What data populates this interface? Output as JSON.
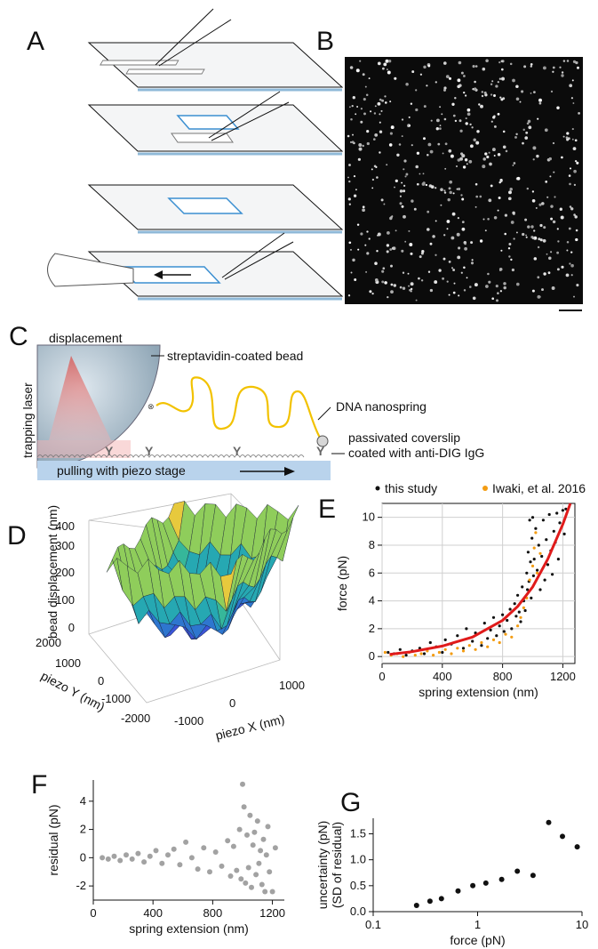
{
  "panels": {
    "a": {
      "label": "A"
    },
    "b": {
      "label": "B"
    },
    "c": {
      "label": "C",
      "annotations": {
        "displacement": "displacement",
        "bead": "streptavidin-coated bead",
        "laser": "trapping laser",
        "dna": "DNA nanospring",
        "coverslip_line1": "passivated coverslip",
        "coverslip_line2": "coated with anti-DIG IgG",
        "stage": "pulling with piezo stage"
      }
    },
    "d": {
      "label": "D",
      "zlabel": "bead displacement (nm)",
      "ylabel": "piezo Y (nm)",
      "xlabel": "piezo X (nm)",
      "zticks": [
        "0",
        "100",
        "200",
        "300",
        "400"
      ],
      "yticks": [
        "-2000",
        "-1000",
        "0",
        "1000",
        "2000"
      ],
      "xticks": [
        "-1000",
        "0",
        "1000"
      ]
    },
    "e": {
      "label": "E"
    },
    "f": {
      "label": "F"
    },
    "g": {
      "label": "G"
    }
  },
  "chart_data": [
    {
      "panel": "E",
      "type": "scatter",
      "xlabel": "spring extension (nm)",
      "ylabel": "force (pN)",
      "xlim": [
        0,
        1280
      ],
      "ylim": [
        -0.5,
        11
      ],
      "xticks": [
        0,
        400,
        800,
        1200
      ],
      "yticks": [
        0,
        2,
        4,
        6,
        8,
        10
      ],
      "grid": true,
      "legend_position": "top",
      "series": [
        {
          "name": "this study",
          "color": "#111111",
          "points": [
            [
              40,
              0.3
            ],
            [
              80,
              0.2
            ],
            [
              120,
              0.5
            ],
            [
              160,
              0.1
            ],
            [
              200,
              0.4
            ],
            [
              250,
              0.6
            ],
            [
              280,
              0.2
            ],
            [
              320,
              1.0
            ],
            [
              360,
              0.7
            ],
            [
              400,
              0.3
            ],
            [
              420,
              1.2
            ],
            [
              460,
              0.9
            ],
            [
              500,
              1.5
            ],
            [
              540,
              0.6
            ],
            [
              560,
              2.0
            ],
            [
              600,
              1.1
            ],
            [
              620,
              1.7
            ],
            [
              660,
              0.8
            ],
            [
              680,
              2.4
            ],
            [
              700,
              1.3
            ],
            [
              720,
              1.9
            ],
            [
              740,
              2.8
            ],
            [
              760,
              1.5
            ],
            [
              780,
              2.2
            ],
            [
              800,
              3.0
            ],
            [
              810,
              1.8
            ],
            [
              830,
              2.6
            ],
            [
              850,
              3.4
            ],
            [
              860,
              2.0
            ],
            [
              880,
              3.8
            ],
            [
              890,
              2.9
            ],
            [
              900,
              4.4
            ],
            [
              910,
              3.2
            ],
            [
              920,
              2.5
            ],
            [
              930,
              5.0
            ],
            [
              940,
              4.0
            ],
            [
              950,
              3.3
            ],
            [
              960,
              6.0
            ],
            [
              965,
              4.8
            ],
            [
              970,
              7.5
            ],
            [
              975,
              5.4
            ],
            [
              980,
              9.8
            ],
            [
              985,
              6.8
            ],
            [
              990,
              4.2
            ],
            [
              995,
              8.5
            ],
            [
              1000,
              10.0
            ],
            [
              1005,
              5.8
            ],
            [
              1010,
              7.0
            ],
            [
              1020,
              9.2
            ],
            [
              1030,
              6.2
            ],
            [
              1040,
              8.0
            ],
            [
              1050,
              4.8
            ],
            [
              1060,
              7.2
            ],
            [
              1070,
              9.8
            ],
            [
              1080,
              5.5
            ],
            [
              1090,
              8.4
            ],
            [
              1100,
              6.6
            ],
            [
              1110,
              10.2
            ],
            [
              1120,
              7.6
            ],
            [
              1130,
              5.9
            ],
            [
              1140,
              9.0
            ],
            [
              1150,
              8.2
            ],
            [
              1160,
              10.3
            ],
            [
              1170,
              7.0
            ],
            [
              1180,
              9.6
            ],
            [
              1200,
              10.5
            ],
            [
              1210,
              8.8
            ],
            [
              1220,
              10.6
            ]
          ]
        },
        {
          "name": "Iwaki, et al. 2016",
          "color": "#f39c12",
          "points": [
            [
              20,
              0.3
            ],
            [
              60,
              0.1
            ],
            [
              100,
              0.2
            ],
            [
              140,
              0.0
            ],
            [
              180,
              0.3
            ],
            [
              220,
              0.1
            ],
            [
              260,
              0.2
            ],
            [
              300,
              0.4
            ],
            [
              340,
              0.1
            ],
            [
              380,
              0.3
            ],
            [
              420,
              0.5
            ],
            [
              460,
              0.2
            ],
            [
              500,
              0.6
            ],
            [
              540,
              0.4
            ],
            [
              580,
              0.8
            ],
            [
              620,
              0.5
            ],
            [
              660,
              1.0
            ],
            [
              700,
              0.7
            ],
            [
              740,
              1.2
            ],
            [
              780,
              1.0
            ],
            [
              820,
              1.6
            ],
            [
              860,
              1.4
            ],
            [
              900,
              2.2
            ],
            [
              920,
              2.8
            ],
            [
              940,
              3.5
            ],
            [
              960,
              4.2
            ],
            [
              980,
              5.5
            ],
            [
              1000,
              6.5
            ],
            [
              1010,
              7.8
            ],
            [
              1020,
              8.9
            ],
            [
              1030,
              6.0
            ],
            [
              1050,
              7.4
            ]
          ]
        },
        {
          "name": "fit",
          "color": "#e01b1b",
          "kind": "line",
          "points": [
            [
              50,
              0.15
            ],
            [
              200,
              0.35
            ],
            [
              400,
              0.75
            ],
            [
              600,
              1.4
            ],
            [
              800,
              2.6
            ],
            [
              900,
              3.6
            ],
            [
              1000,
              5.0
            ],
            [
              1100,
              7.0
            ],
            [
              1200,
              9.5
            ],
            [
              1250,
              11.0
            ]
          ]
        }
      ]
    },
    {
      "panel": "F",
      "type": "scatter",
      "xlabel": "spring extension (nm)",
      "ylabel": "residual (pN)",
      "xlim": [
        0,
        1280
      ],
      "ylim": [
        -3,
        5.5
      ],
      "xticks": [
        0,
        400,
        800,
        1200
      ],
      "yticks": [
        -2,
        0,
        2,
        4
      ],
      "series": [
        {
          "color": "#555555",
          "points": [
            [
              60,
              0.0
            ],
            [
              100,
              -0.1
            ],
            [
              140,
              0.1
            ],
            [
              180,
              -0.2
            ],
            [
              220,
              0.2
            ],
            [
              260,
              -0.1
            ],
            [
              300,
              0.3
            ],
            [
              340,
              -0.3
            ],
            [
              380,
              0.1
            ],
            [
              420,
              0.5
            ],
            [
              460,
              -0.4
            ],
            [
              500,
              0.2
            ],
            [
              540,
              0.6
            ],
            [
              580,
              -0.5
            ],
            [
              620,
              1.1
            ],
            [
              660,
              0.0
            ],
            [
              700,
              -0.8
            ],
            [
              740,
              0.7
            ],
            [
              780,
              -1.0
            ],
            [
              820,
              0.4
            ],
            [
              860,
              -0.6
            ],
            [
              900,
              1.2
            ],
            [
              920,
              -1.3
            ],
            [
              940,
              0.8
            ],
            [
              960,
              -0.9
            ],
            [
              980,
              2.0
            ],
            [
              990,
              -1.5
            ],
            [
              1000,
              5.2
            ],
            [
              1010,
              3.6
            ],
            [
              1020,
              -1.8
            ],
            [
              1030,
              1.6
            ],
            [
              1040,
              -0.7
            ],
            [
              1050,
              3.0
            ],
            [
              1060,
              -2.1
            ],
            [
              1070,
              0.9
            ],
            [
              1080,
              1.8
            ],
            [
              1090,
              -1.2
            ],
            [
              1100,
              2.6
            ],
            [
              1110,
              -0.4
            ],
            [
              1120,
              0.5
            ],
            [
              1130,
              -1.9
            ],
            [
              1140,
              1.3
            ],
            [
              1150,
              -2.4
            ],
            [
              1160,
              0.2
            ],
            [
              1170,
              2.2
            ],
            [
              1180,
              -1.0
            ],
            [
              1200,
              -2.4
            ],
            [
              1220,
              0.7
            ]
          ]
        }
      ]
    },
    {
      "panel": "G",
      "type": "scatter",
      "xlabel": "force (pN)",
      "ylabel_line1": "uncertainty (pN)",
      "ylabel_line2": "(SD of residual)",
      "xscale": "log",
      "xlim": [
        0.1,
        10
      ],
      "ylim": [
        0,
        1.8
      ],
      "xticks": [
        "0.1",
        "1",
        "10"
      ],
      "yticks": [
        "0.0",
        "0.5",
        "1.0",
        "1.5"
      ],
      "series": [
        {
          "color": "#111111",
          "points": [
            [
              0.26,
              0.12
            ],
            [
              0.35,
              0.2
            ],
            [
              0.45,
              0.25
            ],
            [
              0.65,
              0.4
            ],
            [
              0.9,
              0.5
            ],
            [
              1.2,
              0.55
            ],
            [
              1.7,
              0.62
            ],
            [
              2.4,
              0.78
            ],
            [
              3.4,
              0.7
            ],
            [
              4.8,
              1.72
            ],
            [
              6.5,
              1.45
            ],
            [
              9.0,
              1.25
            ]
          ]
        }
      ]
    }
  ]
}
